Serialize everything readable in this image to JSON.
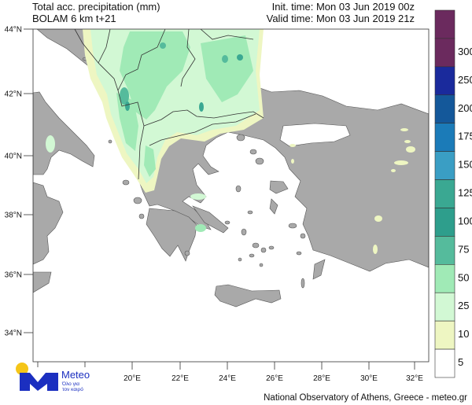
{
  "header": {
    "title": "Total acc. precipitation (mm)",
    "model": "BOLAM 6 km t+21",
    "init_time": "Init. time: Mon 03 Jun 2019 00z",
    "valid_time": "Valid time: Mon 03 Jun 2019 21z"
  },
  "map": {
    "lat_labels": [
      "44°N",
      "42°N",
      "40°N",
      "38°N",
      "36°N",
      "34°N"
    ],
    "lon_labels": [
      "20°E",
      "22°E",
      "24°E",
      "26°E",
      "28°E",
      "30°E",
      "32°E"
    ],
    "land_color": "#a9a9a9",
    "sea_color": "#ffffff"
  },
  "colorbar": {
    "levels": [
      "300",
      "250",
      "200",
      "175",
      "150",
      "125",
      "100",
      "75",
      "50",
      "25",
      "10",
      "5"
    ],
    "colors": [
      "#6b2a5e",
      "#6b2a5e",
      "#1a2a9c",
      "#14589a",
      "#1b7bb8",
      "#3a9ec4",
      "#3aa892",
      "#2e9e8c",
      "#55bb9c",
      "#a0eab6",
      "#d2f8d4",
      "#eef6c2",
      "#ffffff"
    ]
  },
  "logo": {
    "name": "Meteo",
    "tagline_1": "Όλο για",
    "tagline_2": "τον καιρό",
    "brand_blue": "#1b2fc0",
    "brand_yellow": "#f5c518"
  },
  "footer": "National Observatory of Athens, Greece - meteo.gr"
}
